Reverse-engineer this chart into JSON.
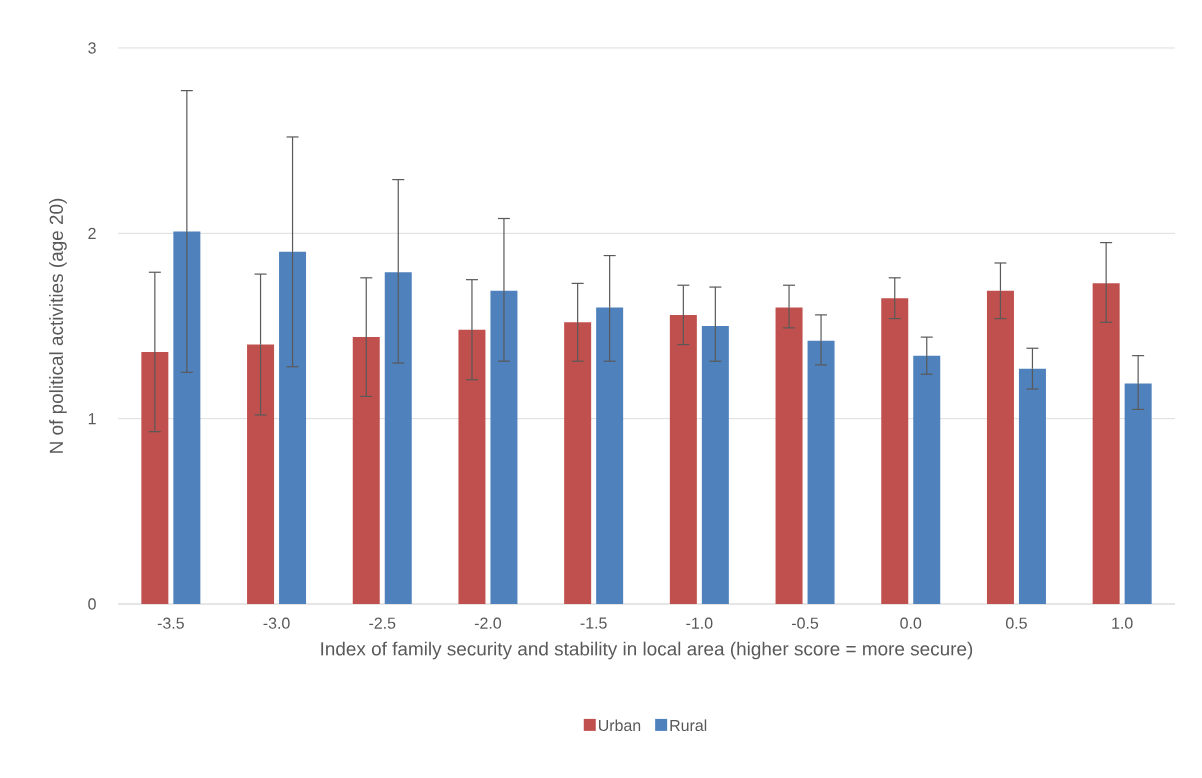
{
  "chart_data": {
    "type": "bar",
    "xlabel": "Index of family security and stability in local area (higher score = more secure)",
    "ylabel": "N of political activities (age 20)",
    "categories": [
      "-3.5",
      "-3.0",
      "-2.5",
      "-2.0",
      "-1.5",
      "-1.0",
      "-0.5",
      "0.0",
      "0.5",
      "1.0"
    ],
    "series": [
      {
        "name": "Urban",
        "color": "#c0504d",
        "values": [
          1.36,
          1.4,
          1.44,
          1.48,
          1.52,
          1.56,
          1.6,
          1.65,
          1.69,
          1.73
        ],
        "errors": [
          [
            0.93,
            1.79
          ],
          [
            1.02,
            1.78
          ],
          [
            1.12,
            1.76
          ],
          [
            1.21,
            1.75
          ],
          [
            1.31,
            1.73
          ],
          [
            1.4,
            1.72
          ],
          [
            1.49,
            1.72
          ],
          [
            1.54,
            1.76
          ],
          [
            1.54,
            1.84
          ],
          [
            1.52,
            1.95
          ]
        ]
      },
      {
        "name": "Rural",
        "color": "#4f81bd",
        "values": [
          2.01,
          1.9,
          1.79,
          1.69,
          1.6,
          1.5,
          1.42,
          1.34,
          1.27,
          1.19
        ],
        "errors": [
          [
            1.25,
            2.77
          ],
          [
            1.28,
            2.52
          ],
          [
            1.3,
            2.29
          ],
          [
            1.31,
            2.08
          ],
          [
            1.31,
            1.88
          ],
          [
            1.31,
            1.71
          ],
          [
            1.29,
            1.56
          ],
          [
            1.24,
            1.44
          ],
          [
            1.16,
            1.38
          ],
          [
            1.05,
            1.34
          ]
        ]
      }
    ],
    "ylim": [
      0,
      3
    ],
    "yticks": [
      0,
      1,
      2,
      3
    ],
    "grid": "y",
    "legend": "bottom"
  }
}
